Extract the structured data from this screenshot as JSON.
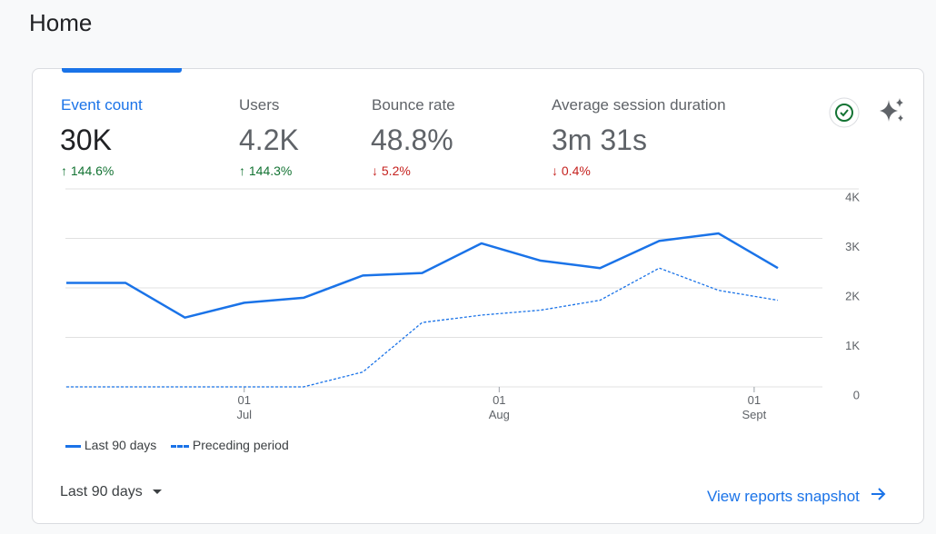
{
  "header": {
    "title": "Home"
  },
  "metrics": [
    {
      "label": "Event count",
      "value": "30K",
      "change": "144.6%"
    },
    {
      "label": "Users",
      "value": "4.2K",
      "change": "144.3%"
    },
    {
      "label": "Bounce rate",
      "value": "48.8%",
      "change": "5.2%"
    },
    {
      "label": "Average session duration",
      "value": "3m 31s",
      "change": "0.4%"
    }
  ],
  "chart_data": {
    "type": "line",
    "categories": [
      null,
      null,
      null,
      null,
      null,
      null,
      null,
      null,
      null,
      null,
      null,
      null,
      null
    ],
    "series": [
      {
        "name": "Last 90 days",
        "color": "#1a73e8",
        "style": "solid",
        "values": [
          2100,
          2100,
          1400,
          1700,
          1800,
          2250,
          2300,
          2900,
          2550,
          2400,
          2950,
          3100,
          2400
        ]
      },
      {
        "name": "Preceding period",
        "color": "#1a73e8",
        "style": "dashed",
        "values": [
          0,
          0,
          0,
          0,
          0,
          300,
          1300,
          1450,
          1550,
          1750,
          2400,
          1950,
          1750
        ]
      }
    ],
    "ylim": [
      0,
      4000
    ],
    "yticks": [
      0,
      {
        "value": 1000,
        "label": "1K"
      },
      {
        "value": 2000,
        "label": "2K"
      },
      {
        "value": 3000,
        "label": "3K"
      },
      {
        "value": 4000,
        "label": "4K"
      }
    ],
    "xticks": [
      {
        "value": 3,
        "label": "01\nJul"
      },
      {
        "value": 7.3,
        "label": "01\nAug"
      },
      {
        "value": 11.6,
        "label": "01\nSept"
      }
    ],
    "grid": true
  },
  "footer": {
    "date_range": "Last 90 days",
    "link": "View reports snapshot"
  }
}
